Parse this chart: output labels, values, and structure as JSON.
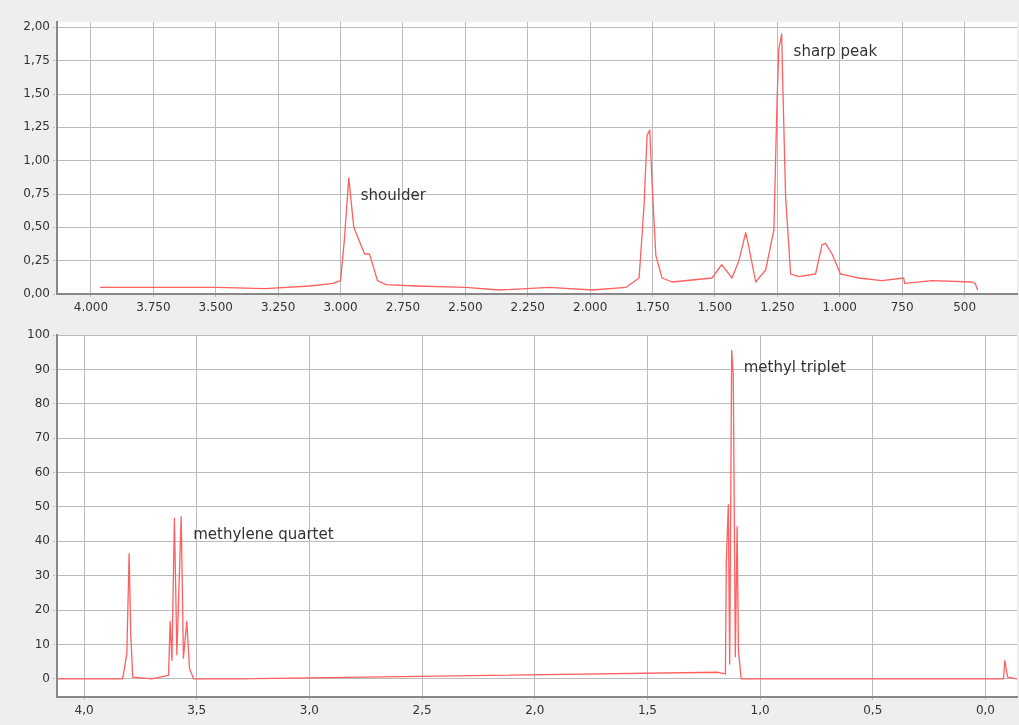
{
  "chart_data": [
    {
      "type": "line",
      "xlim": [
        4136,
        290
      ],
      "ylim": [
        0,
        2.04
      ],
      "xticks": [
        {
          "value": 4000,
          "label": "4.000"
        },
        {
          "value": 3750,
          "label": "3.750"
        },
        {
          "value": 3500,
          "label": "3.500"
        },
        {
          "value": 3250,
          "label": "3.250"
        },
        {
          "value": 3000,
          "label": "3.000"
        },
        {
          "value": 2750,
          "label": "2.750"
        },
        {
          "value": 2500,
          "label": "2.500"
        },
        {
          "value": 2250,
          "label": "2.250"
        },
        {
          "value": 2000,
          "label": "2.000"
        },
        {
          "value": 1750,
          "label": "1.750"
        },
        {
          "value": 1500,
          "label": "1.500"
        },
        {
          "value": 1250,
          "label": "1.250"
        },
        {
          "value": 1000,
          "label": "1.000"
        },
        {
          "value": 750,
          "label": "750"
        },
        {
          "value": 500,
          "label": "500"
        }
      ],
      "yticks": [
        {
          "value": 0,
          "label": "0,00"
        },
        {
          "value": 0.25,
          "label": "0,25"
        },
        {
          "value": 0.5,
          "label": "0,50"
        },
        {
          "value": 0.75,
          "label": "0,75"
        },
        {
          "value": 1,
          "label": "1,00"
        },
        {
          "value": 1.25,
          "label": "1,25"
        },
        {
          "value": 1.5,
          "label": "1,50"
        },
        {
          "value": 1.75,
          "label": "1,75"
        },
        {
          "value": 2,
          "label": "2,00"
        }
      ],
      "grid": true,
      "legend": false,
      "marker": "none",
      "line_style": "solid",
      "series": [
        {
          "color": "#ff6060",
          "x": [
            3964,
            3700,
            3500,
            3300,
            3124,
            3030,
            3000,
            2985,
            2967,
            2947,
            2904,
            2884,
            2852,
            2818,
            2700,
            2500,
            2364,
            2164,
            1992,
            1856,
            1804,
            1784,
            1772,
            1761,
            1752,
            1737,
            1712,
            1672,
            1512,
            1473,
            1432,
            1404,
            1377,
            1364,
            1337,
            1297,
            1264,
            1251,
            1244,
            1233,
            1227,
            1217,
            1197,
            1164,
            1097,
            1071,
            1057,
            1031,
            997,
            971,
            924,
            831,
            744,
            740,
            631,
            471,
            457,
            448
          ],
          "values": [
            0.05,
            0.05,
            0.05,
            0.04,
            0.06,
            0.08,
            0.1,
            0.4,
            0.87,
            0.5,
            0.3,
            0.3,
            0.1,
            0.07,
            0.06,
            0.05,
            0.03,
            0.05,
            0.03,
            0.05,
            0.12,
            0.67,
            1.19,
            1.23,
            0.83,
            0.29,
            0.12,
            0.09,
            0.12,
            0.22,
            0.12,
            0.25,
            0.46,
            0.35,
            0.09,
            0.18,
            0.48,
            1.47,
            1.84,
            1.95,
            1.47,
            0.73,
            0.15,
            0.13,
            0.15,
            0.37,
            0.38,
            0.3,
            0.15,
            0.14,
            0.12,
            0.1,
            0.12,
            0.08,
            0.1,
            0.09,
            0.08,
            0.03
          ]
        }
      ],
      "annotations": [
        {
          "text": "shoulder",
          "x": 2967,
          "y": 0.87
        },
        {
          "text": "sharp peak",
          "x": 1233,
          "y": 1.95
        }
      ]
    },
    {
      "type": "line",
      "xlim": [
        4.12,
        -0.14
      ],
      "ylim": [
        -5.3,
        100
      ],
      "xticks": [
        {
          "value": 4,
          "label": "4,0"
        },
        {
          "value": 3.5,
          "label": "3,5"
        },
        {
          "value": 3,
          "label": "3,0"
        },
        {
          "value": 2.5,
          "label": "2,5"
        },
        {
          "value": 2,
          "label": "2,0"
        },
        {
          "value": 1.5,
          "label": "1,5"
        },
        {
          "value": 1,
          "label": "1,0"
        },
        {
          "value": 0.5,
          "label": "0,5"
        },
        {
          "value": 0,
          "label": "0,0"
        }
      ],
      "yticks": [
        0,
        10,
        20,
        30,
        40,
        50,
        60,
        70,
        80,
        90,
        100
      ],
      "grid": true,
      "legend": false,
      "marker": "none",
      "line_style": "solid",
      "series": [
        {
          "color": "#ff6060",
          "x": [
            4.12,
            3.83,
            3.825,
            3.81,
            3.8,
            3.793,
            3.784,
            3.7,
            3.625,
            3.618,
            3.61,
            3.599,
            3.588,
            3.569,
            3.559,
            3.544,
            3.532,
            3.514,
            3.3,
            1.188,
            1.154,
            1.15,
            1.141,
            1.135,
            1.126,
            1.119,
            1.11,
            1.102,
            1.096,
            1.084,
            0.5,
            -0.08,
            -0.086,
            -0.098,
            -0.14
          ],
          "values": [
            0,
            0,
            1.4,
            7.3,
            36.4,
            13.3,
            0.5,
            0,
            1,
            16.7,
            5.3,
            46.7,
            7,
            47.2,
            6,
            16.7,
            3,
            0,
            0,
            1.9,
            1.4,
            33.9,
            50.7,
            4.3,
            95.6,
            88.2,
            6.4,
            44.3,
            8.2,
            0,
            0,
            0,
            5.3,
            0.5,
            0
          ]
        }
      ],
      "annotations": [
        {
          "text": "methylene quartet",
          "x": 3.569,
          "y": 47.2
        },
        {
          "text": "methyl triplet",
          "x": 1.126,
          "y": 95.6
        }
      ]
    }
  ]
}
